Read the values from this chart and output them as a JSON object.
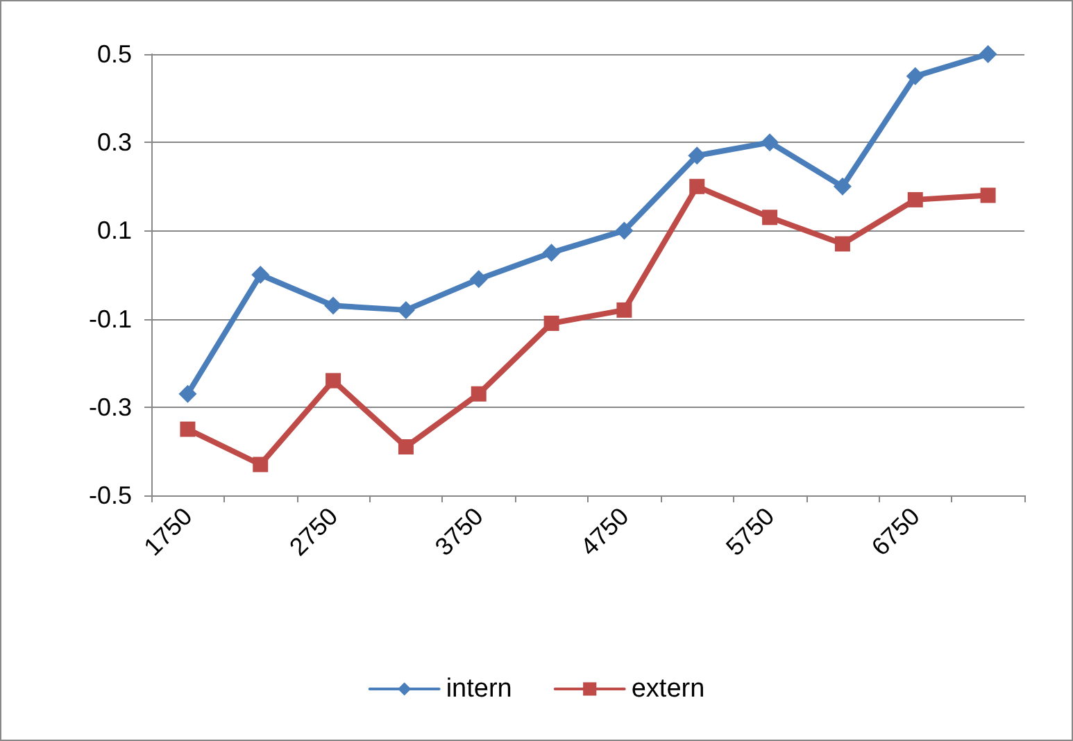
{
  "chart_data": {
    "type": "line",
    "categories": [
      "1750",
      null,
      "2750",
      null,
      "3750",
      null,
      "4750",
      null,
      "5750",
      null,
      "6750",
      null
    ],
    "series": [
      {
        "name": "intern",
        "color": "#4a7ebb",
        "marker": "diamond",
        "values": [
          -0.27,
          0.0,
          -0.07,
          -0.08,
          -0.01,
          0.05,
          0.1,
          0.27,
          0.3,
          0.2,
          0.45,
          0.5
        ]
      },
      {
        "name": "extern",
        "color": "#be4b48",
        "marker": "square",
        "values": [
          -0.35,
          -0.43,
          -0.24,
          -0.39,
          -0.27,
          -0.11,
          -0.08,
          0.2,
          0.13,
          0.07,
          0.17,
          0.18
        ]
      }
    ],
    "ylim": [
      -0.5,
      0.5
    ],
    "yticks": [
      -0.5,
      -0.3,
      -0.1,
      0.1,
      0.3,
      0.5
    ],
    "grid": "y",
    "legend": "bottom",
    "line_style": "solid"
  }
}
